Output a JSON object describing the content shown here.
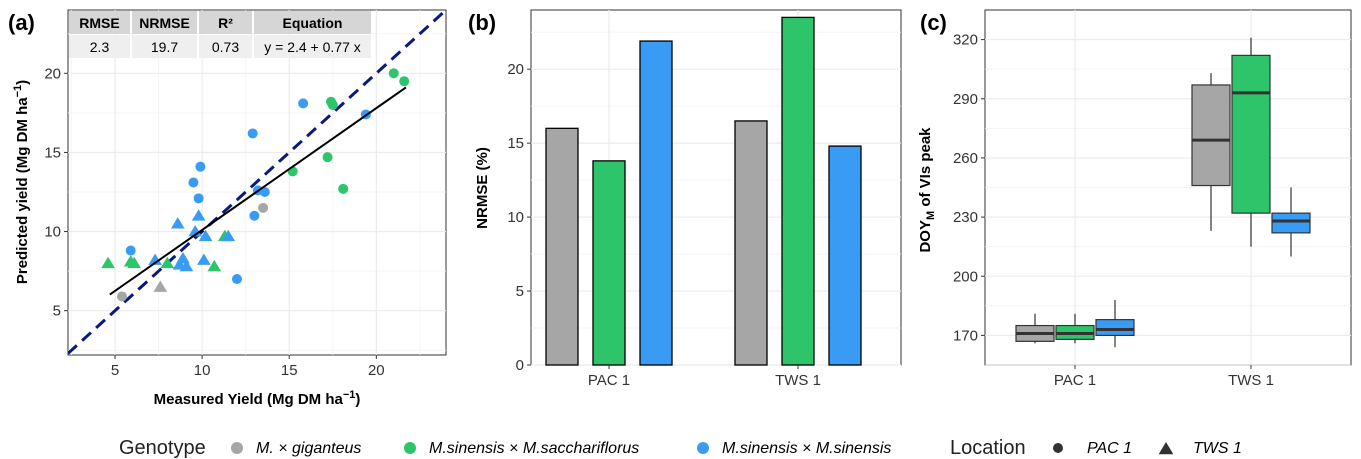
{
  "colors": {
    "giganteus": "#A6A6A6",
    "saccharifloros": "#2EC46A",
    "sinensis": "#3A9BF5",
    "identity_line": "#0A1A7A",
    "fit_line": "#000000",
    "grid": "#EBEBEB"
  },
  "chart_data": [
    {
      "panel": "(a)",
      "type": "scatter",
      "xlabel": "Measured Yield (Mg DM ha",
      "ylabel": "Predicted yield (Mg DM ha",
      "unit_exponent": "−1",
      "unit_close": ")",
      "xlim": [
        2.3,
        24
      ],
      "ylim": [
        2.2,
        24
      ],
      "xticks": [
        "5",
        "10",
        "15",
        "20"
      ],
      "yticks": [
        "5",
        "10",
        "15",
        "20"
      ],
      "grid": true,
      "table": {
        "headers": [
          "RMSE",
          "NRMSE",
          "R²",
          "Equation"
        ],
        "values": [
          "2.3",
          "19.7",
          "0.73",
          "y = 2.4 + 0.77 x"
        ]
      },
      "fit": {
        "intercept": 2.4,
        "slope": 0.77,
        "x_range": [
          4.7,
          21.7
        ]
      },
      "points": [
        {
          "x": 5.4,
          "y": 5.9,
          "g": "giganteus",
          "loc": "PAC 1"
        },
        {
          "x": 13.5,
          "y": 11.5,
          "g": "giganteus",
          "loc": "PAC 1"
        },
        {
          "x": 7.6,
          "y": 6.5,
          "g": "giganteus",
          "loc": "TWS 1"
        },
        {
          "x": 21.0,
          "y": 20.0,
          "g": "saccharifloros",
          "loc": "PAC 1"
        },
        {
          "x": 21.6,
          "y": 19.5,
          "g": "saccharifloros",
          "loc": "PAC 1"
        },
        {
          "x": 17.4,
          "y": 18.2,
          "g": "saccharifloros",
          "loc": "PAC 1"
        },
        {
          "x": 17.5,
          "y": 18.0,
          "g": "saccharifloros",
          "loc": "PAC 1"
        },
        {
          "x": 17.2,
          "y": 14.7,
          "g": "saccharifloros",
          "loc": "PAC 1"
        },
        {
          "x": 15.2,
          "y": 13.8,
          "g": "saccharifloros",
          "loc": "PAC 1"
        },
        {
          "x": 18.1,
          "y": 12.7,
          "g": "saccharifloros",
          "loc": "PAC 1"
        },
        {
          "x": 4.6,
          "y": 8.0,
          "g": "saccharifloros",
          "loc": "TWS 1"
        },
        {
          "x": 5.9,
          "y": 8.1,
          "g": "saccharifloros",
          "loc": "TWS 1"
        },
        {
          "x": 6.1,
          "y": 8.0,
          "g": "saccharifloros",
          "loc": "TWS 1"
        },
        {
          "x": 8.0,
          "y": 8.0,
          "g": "saccharifloros",
          "loc": "TWS 1"
        },
        {
          "x": 10.7,
          "y": 7.8,
          "g": "saccharifloros",
          "loc": "TWS 1"
        },
        {
          "x": 11.3,
          "y": 9.7,
          "g": "saccharifloros",
          "loc": "TWS 1"
        },
        {
          "x": 15.8,
          "y": 18.1,
          "g": "sinensis",
          "loc": "PAC 1"
        },
        {
          "x": 19.4,
          "y": 17.4,
          "g": "sinensis",
          "loc": "PAC 1"
        },
        {
          "x": 12.9,
          "y": 16.2,
          "g": "sinensis",
          "loc": "PAC 1"
        },
        {
          "x": 9.9,
          "y": 14.1,
          "g": "sinensis",
          "loc": "PAC 1"
        },
        {
          "x": 9.5,
          "y": 13.1,
          "g": "sinensis",
          "loc": "PAC 1"
        },
        {
          "x": 13.2,
          "y": 12.6,
          "g": "sinensis",
          "loc": "PAC 1"
        },
        {
          "x": 13.6,
          "y": 12.5,
          "g": "sinensis",
          "loc": "PAC 1"
        },
        {
          "x": 9.8,
          "y": 12.1,
          "g": "sinensis",
          "loc": "PAC 1"
        },
        {
          "x": 13.0,
          "y": 11.0,
          "g": "sinensis",
          "loc": "PAC 1"
        },
        {
          "x": 5.9,
          "y": 8.8,
          "g": "sinensis",
          "loc": "PAC 1"
        },
        {
          "x": 12.0,
          "y": 7.0,
          "g": "sinensis",
          "loc": "PAC 1"
        },
        {
          "x": 8.6,
          "y": 10.5,
          "g": "sinensis",
          "loc": "TWS 1"
        },
        {
          "x": 9.8,
          "y": 11.0,
          "g": "sinensis",
          "loc": "TWS 1"
        },
        {
          "x": 9.6,
          "y": 10.0,
          "g": "sinensis",
          "loc": "TWS 1"
        },
        {
          "x": 10.2,
          "y": 9.7,
          "g": "sinensis",
          "loc": "TWS 1"
        },
        {
          "x": 11.5,
          "y": 9.7,
          "g": "sinensis",
          "loc": "TWS 1"
        },
        {
          "x": 7.3,
          "y": 8.2,
          "g": "sinensis",
          "loc": "TWS 1"
        },
        {
          "x": 8.9,
          "y": 8.3,
          "g": "sinensis",
          "loc": "TWS 1"
        },
        {
          "x": 10.1,
          "y": 8.2,
          "g": "sinensis",
          "loc": "TWS 1"
        },
        {
          "x": 9.1,
          "y": 7.8,
          "g": "sinensis",
          "loc": "TWS 1"
        },
        {
          "x": 8.7,
          "y": 7.9,
          "g": "sinensis",
          "loc": "TWS 1"
        }
      ]
    },
    {
      "panel": "(b)",
      "type": "bar",
      "ylabel": "NRMSE (%)",
      "ylim": [
        0,
        24
      ],
      "yticks": [
        "0",
        "5",
        "10",
        "15",
        "20"
      ],
      "categories": [
        "PAC 1",
        "TWS 1"
      ],
      "grid": true,
      "series": [
        {
          "key": "giganteus",
          "values": [
            16.0,
            16.5
          ]
        },
        {
          "key": "saccharifloros",
          "values": [
            13.8,
            23.5
          ]
        },
        {
          "key": "sinensis",
          "values": [
            21.9,
            14.8
          ]
        }
      ]
    },
    {
      "panel": "(c)",
      "type": "box",
      "ylabel_main": "DOY",
      "ylabel_sub": "M",
      "ylabel_rest": " of VIs peak",
      "ylim": [
        155,
        335
      ],
      "yticks": [
        "170",
        "200",
        "230",
        "260",
        "290",
        "320"
      ],
      "categories": [
        "PAC 1",
        "TWS 1"
      ],
      "grid": true,
      "boxes": [
        {
          "cat": "PAC 1",
          "key": "giganteus",
          "min": 166,
          "q1": 167,
          "median": 171,
          "q3": 175,
          "max": 181
        },
        {
          "cat": "PAC 1",
          "key": "saccharifloros",
          "min": 166,
          "q1": 168,
          "median": 171,
          "q3": 175,
          "max": 181
        },
        {
          "cat": "PAC 1",
          "key": "sinensis",
          "min": 164,
          "q1": 170,
          "median": 173,
          "q3": 178,
          "max": 188
        },
        {
          "cat": "TWS 1",
          "key": "giganteus",
          "min": 223,
          "q1": 246,
          "median": 269,
          "q3": 297,
          "max": 303
        },
        {
          "cat": "TWS 1",
          "key": "saccharifloros",
          "min": 215,
          "q1": 232,
          "median": 293,
          "q3": 312,
          "max": 321
        },
        {
          "cat": "TWS 1",
          "key": "sinensis",
          "min": 210,
          "q1": 222,
          "median": 228,
          "q3": 232,
          "max": 245
        }
      ]
    }
  ],
  "legend": {
    "genotype_title": "Genotype",
    "genotype_items": [
      {
        "key": "giganteus",
        "label": "M. × giganteus"
      },
      {
        "key": "saccharifloros",
        "label": "M.sinensis × M.sacchariflorus"
      },
      {
        "key": "sinensis",
        "label": "M.sinensis × M.sinensis"
      }
    ],
    "location_title": "Location",
    "location_items": [
      {
        "shape": "circle",
        "label": "PAC 1"
      },
      {
        "shape": "triangle",
        "label": "TWS 1"
      }
    ]
  }
}
